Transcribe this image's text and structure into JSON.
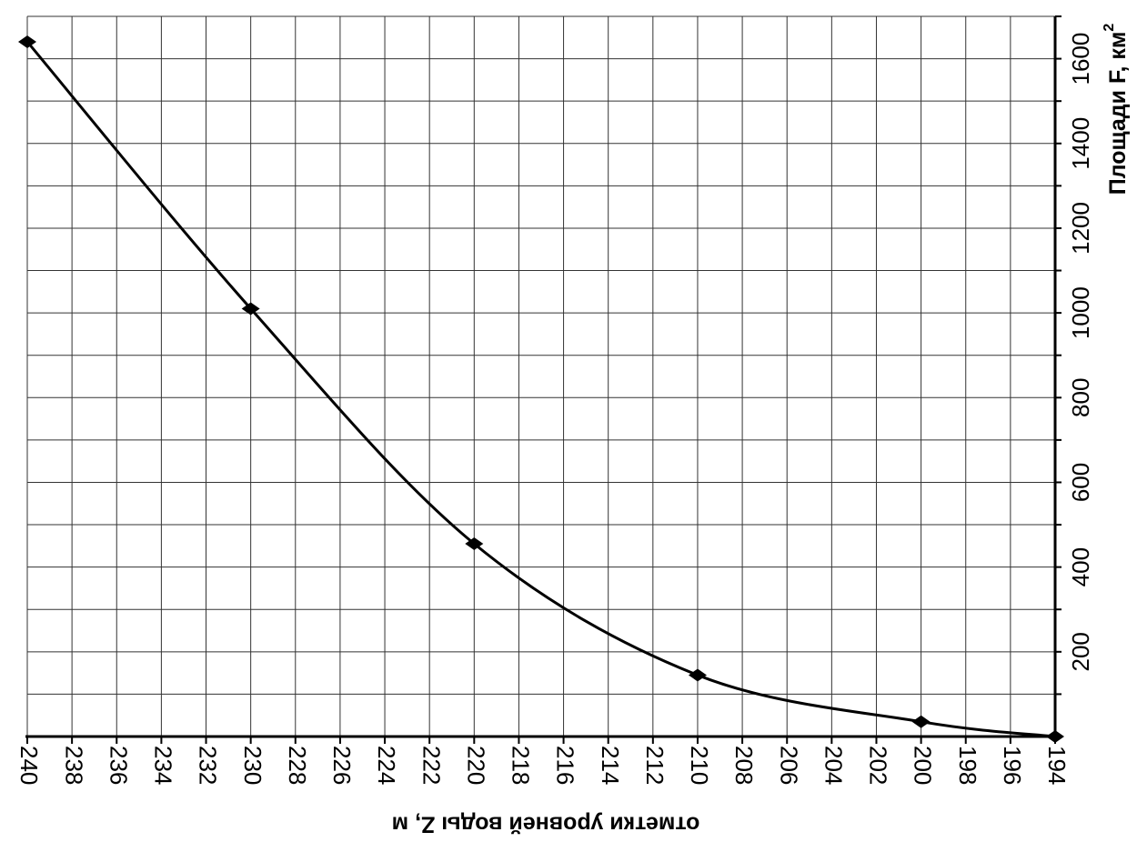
{
  "chart_data": {
    "type": "line",
    "title": "",
    "xlabel": "отметки уровней воды Z, м",
    "ylabel": "Площади F, км",
    "ylabel_sup": "2",
    "x_ticks": [
      240,
      238,
      236,
      234,
      232,
      230,
      228,
      226,
      224,
      222,
      220,
      218,
      216,
      214,
      212,
      210,
      208,
      206,
      204,
      202,
      200,
      198,
      196,
      194
    ],
    "y_ticks": [
      200,
      400,
      600,
      800,
      1000,
      1200,
      1400,
      1600
    ],
    "xlim": [
      240,
      194
    ],
    "ylim": [
      0,
      1700
    ],
    "grid": true,
    "orientation": "rotated 90 degrees counter-clockwise",
    "x": [
      194,
      200,
      210,
      220,
      230,
      240
    ],
    "y": [
      0,
      35,
      145,
      455,
      1010,
      1640
    ],
    "marker_style": "diamond",
    "line_color": "#000000"
  }
}
